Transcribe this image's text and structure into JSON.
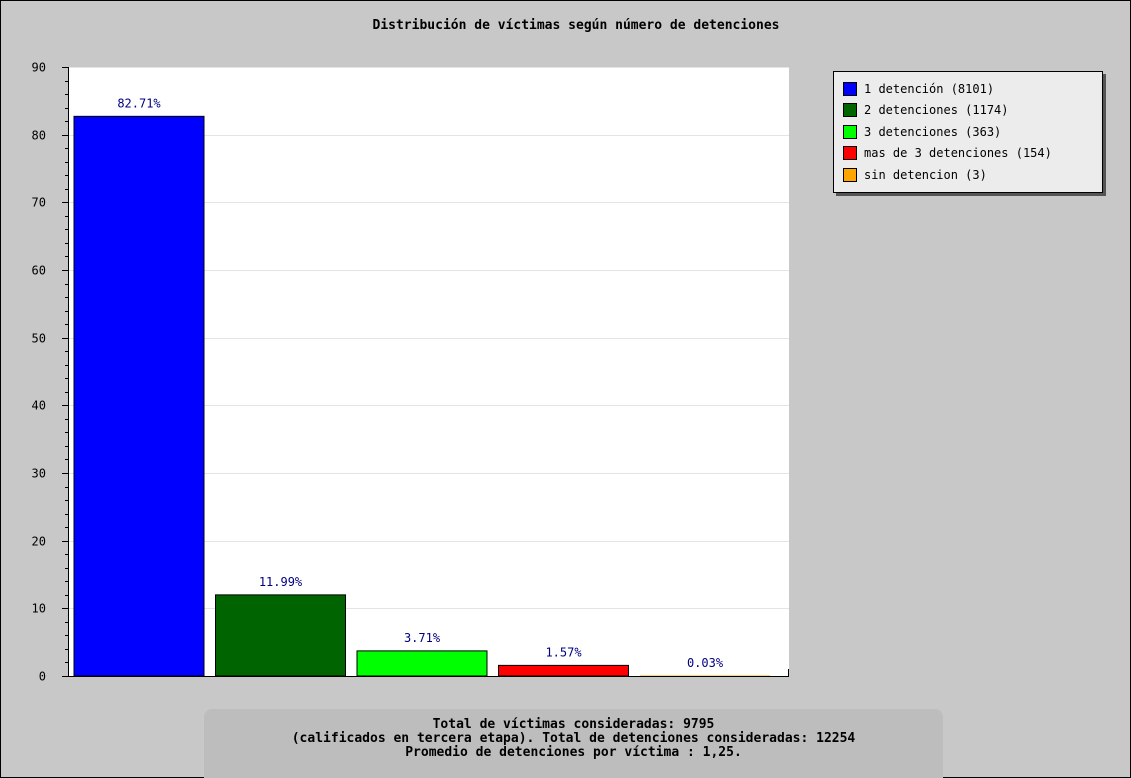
{
  "chart_data": {
    "type": "bar",
    "title": "Distribución de víctimas según número de detenciones",
    "xlabel": "",
    "ylabel": "",
    "ylim": [
      0,
      90
    ],
    "yticks": [
      0,
      10,
      20,
      30,
      40,
      50,
      60,
      70,
      80,
      90
    ],
    "grid": true,
    "legend_position": "top-right",
    "categories": [
      "1 detención (8101)",
      "2 detenciones (1174)",
      "3 detenciones (363)",
      "mas de 3 detenciones (154)",
      "sin detencion (3)"
    ],
    "values": [
      82.71,
      11.99,
      3.71,
      1.57,
      0.03
    ],
    "data_labels": [
      "82.71%",
      "11.99%",
      "3.71%",
      "1.57%",
      "0.03%"
    ],
    "colors": [
      "#0000ff",
      "#006400",
      "#00ff00",
      "#ff0000",
      "#ffa500"
    ]
  },
  "footer": {
    "line1": "Total de víctimas consideradas: 9795",
    "line2": "(calificados en tercera etapa). Total de detenciones consideradas: 12254",
    "line3": "Promedio de detenciones por víctima : 1,25."
  }
}
